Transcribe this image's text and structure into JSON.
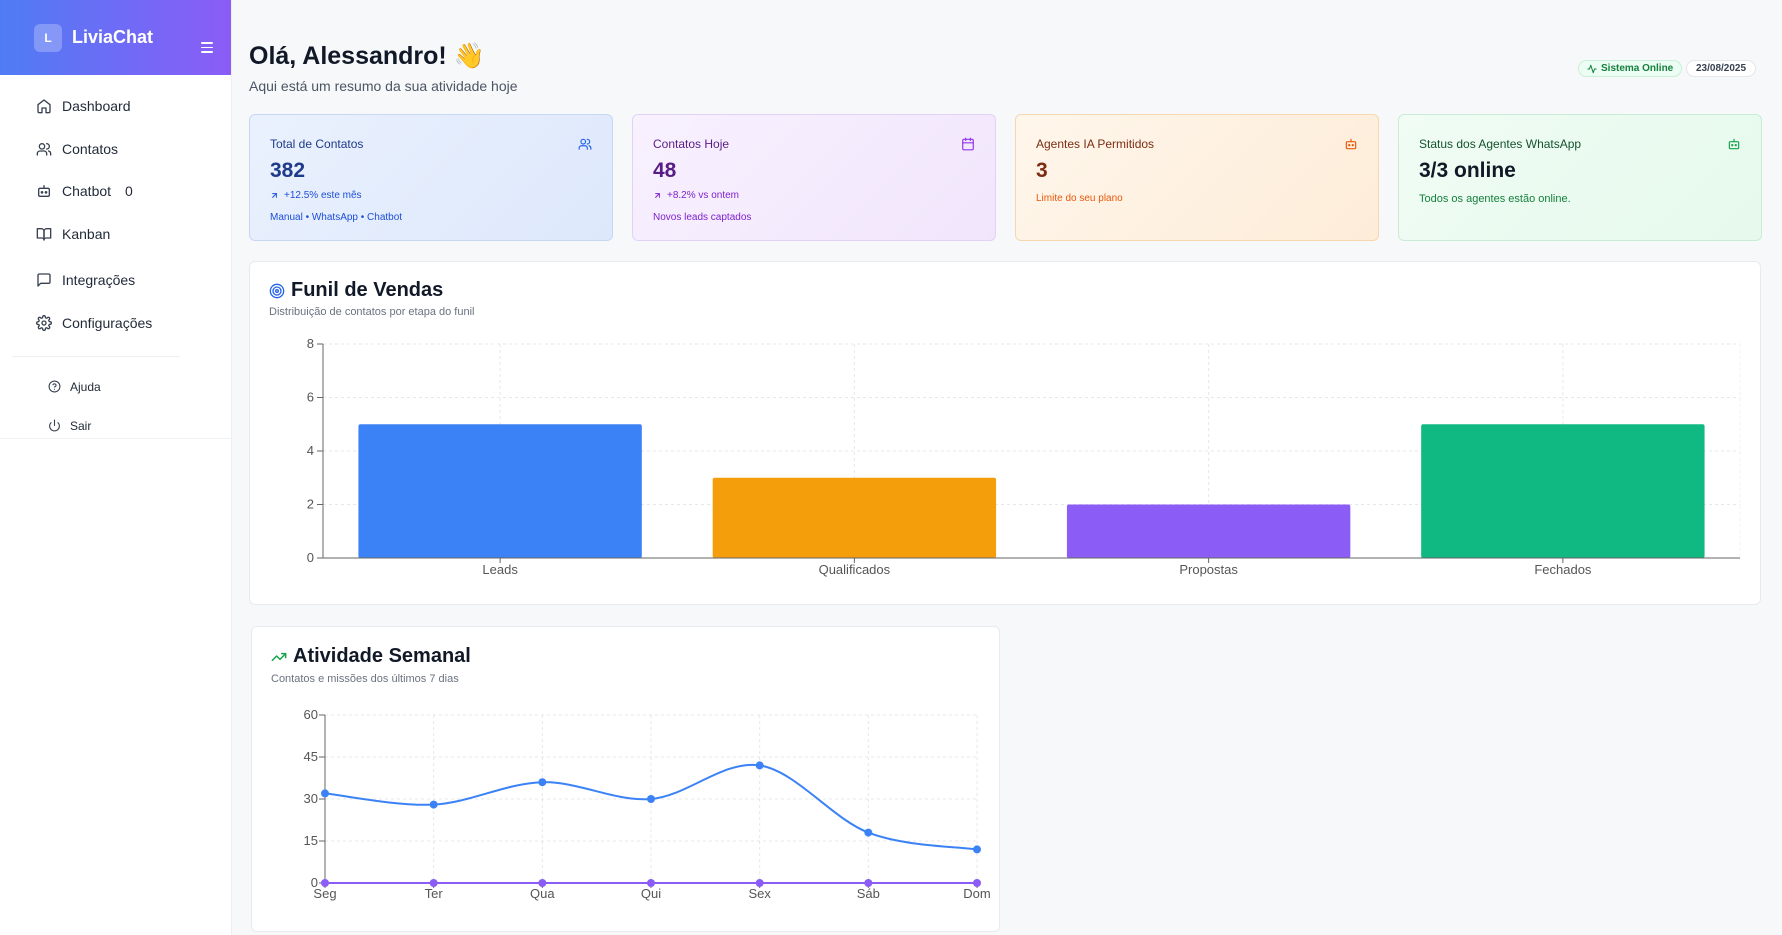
{
  "sidebar": {
    "brand": {
      "logo_letter": "L",
      "name": "LiviaChat"
    },
    "items": [
      {
        "label": "Dashboard",
        "icon": "home-icon"
      },
      {
        "label": "Contatos",
        "icon": "users-icon"
      },
      {
        "label": "Chatbot",
        "icon": "bot-icon",
        "badge": "0"
      },
      {
        "label": "Kanban",
        "icon": "book-icon"
      },
      {
        "label": "Integrações",
        "icon": "message-square-icon"
      },
      {
        "label": "Configurações",
        "icon": "gear-icon"
      }
    ],
    "secondary": [
      {
        "label": "Ajuda",
        "icon": "help-circle-icon"
      },
      {
        "label": "Sair",
        "icon": "power-icon"
      }
    ]
  },
  "header": {
    "greeting": "Olá, Alessandro! 👋",
    "subtitle": "Aqui está um resumo da sua atividade hoje",
    "status": "Sistema Online",
    "date": "23/08/2025"
  },
  "cards": [
    {
      "title": "Total de Contatos",
      "value": "382",
      "trend": "+12.5% este mês",
      "sub": "Manual • WhatsApp • Chatbot",
      "icon": "users-icon",
      "color": "#1e3a8a"
    },
    {
      "title": "Contatos Hoje",
      "value": "48",
      "trend": "+8.2% vs ontem",
      "sub": "Novos leads captados",
      "icon": "calendar-icon",
      "color": "#581c87"
    },
    {
      "title": "Agentes IA Permitidos",
      "value": "3",
      "sub": "Limite do seu plano",
      "icon": "bot-icon",
      "color": "#7c2d12"
    },
    {
      "title": "Status dos Agentes WhatsApp",
      "value": "3/3 online",
      "sub": "Todos os agentes estão online.",
      "icon": "bot-icon",
      "color": "#15803d"
    }
  ],
  "funnel": {
    "title": "Funil de Vendas",
    "subtitle": "Distribuição de contatos por etapa do funil",
    "icon": "target-icon"
  },
  "weekly": {
    "title": "Atividade Semanal",
    "subtitle": "Contatos e missões dos últimos 7 dias",
    "icon": "trending-up-icon"
  },
  "chart_data": [
    {
      "type": "bar",
      "categories": [
        "Leads",
        "Qualificados",
        "Propostas",
        "Fechados"
      ],
      "values": [
        5,
        3,
        2,
        5
      ],
      "colors": [
        "#3b82f6",
        "#f59e0b",
        "#8b5cf6",
        "#10b981"
      ],
      "ylim": [
        0,
        8
      ],
      "yticks": [
        0,
        2,
        4,
        6,
        8
      ],
      "grid": true
    },
    {
      "type": "line",
      "categories": [
        "Seg",
        "Ter",
        "Qua",
        "Qui",
        "Sex",
        "Sáb",
        "Dom"
      ],
      "series": [
        {
          "values": [
            32,
            28,
            36,
            30,
            42,
            18,
            12
          ],
          "color": "#3b82f6"
        },
        {
          "values": [
            0,
            0,
            0,
            0,
            0,
            0,
            0
          ],
          "color": "#8b5cf6"
        }
      ],
      "ylim": [
        0,
        60
      ],
      "yticks": [
        0,
        15,
        30,
        45,
        60
      ],
      "grid": true
    }
  ]
}
